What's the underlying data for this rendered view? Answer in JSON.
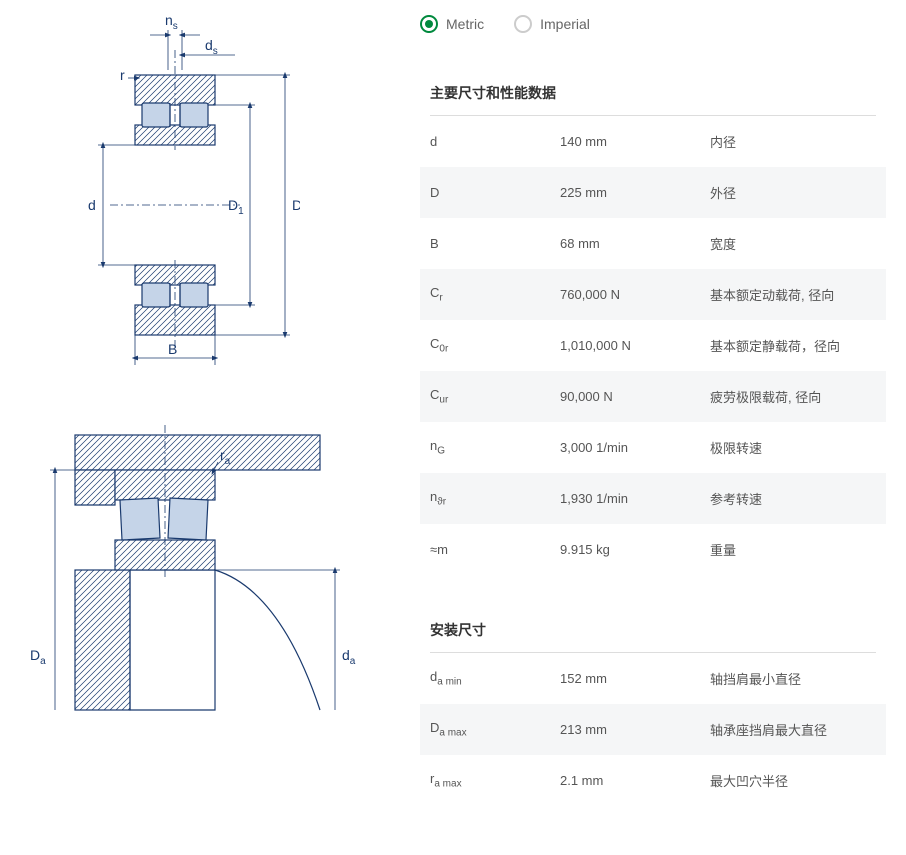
{
  "units": {
    "metric": "Metric",
    "imperial": "Imperial",
    "selected": "metric"
  },
  "sections": {
    "main": {
      "title": "主要尺寸和性能数据"
    },
    "mounting": {
      "title": "安装尺寸"
    }
  },
  "main_rows": [
    {
      "param": "d",
      "sub": "",
      "value": "140 mm",
      "desc": "内径",
      "alt": false
    },
    {
      "param": "D",
      "sub": "",
      "value": "225 mm",
      "desc": "外径",
      "alt": true
    },
    {
      "param": "B",
      "sub": "",
      "value": "68 mm",
      "desc": "宽度",
      "alt": false
    },
    {
      "param": "C",
      "sub": "r",
      "value": "760,000 N",
      "desc": "基本额定动载荷, 径向",
      "alt": true
    },
    {
      "param": "C",
      "sub": "0r",
      "value": "1,010,000 N",
      "desc": "基本额定静载荷，径向",
      "alt": false
    },
    {
      "param": "C",
      "sub": "ur",
      "value": "90,000 N",
      "desc": "疲劳极限载荷, 径向",
      "alt": true
    },
    {
      "param": "n",
      "sub": "G",
      "value": "3,000 1/min",
      "desc": "极限转速",
      "alt": false
    },
    {
      "param": "n",
      "sub": "ϑr",
      "value": "1,930 1/min",
      "desc": "参考转速",
      "alt": true
    },
    {
      "param": "≈m",
      "sub": "",
      "value": "9.915 kg",
      "desc": "重量",
      "alt": false
    }
  ],
  "mounting_rows": [
    {
      "param": "d",
      "sub": "a min",
      "value": "152 mm",
      "desc": "轴挡肩最小直径",
      "alt": false
    },
    {
      "param": "D",
      "sub": "a max",
      "value": "213 mm",
      "desc": "轴承座挡肩最大直径",
      "alt": true
    },
    {
      "param": "r",
      "sub": "a max",
      "value": "2.1 mm",
      "desc": "最大凹穴半径",
      "alt": false
    }
  ],
  "diagram_labels": {
    "ns": "n",
    "ns_sub": "s",
    "ds": "d",
    "ds_sub": "s",
    "r": "r",
    "d": "d",
    "D1": "D",
    "D1_sub": "1",
    "D": "D",
    "B": "B",
    "ra": "r",
    "ra_sub": "a",
    "Da": "D",
    "Da_sub": "a",
    "da": "d",
    "da_sub": "a"
  },
  "colors": {
    "accent": "#00893d",
    "diagram_stroke": "#1a3a6e",
    "diagram_fill": "#c5d4e8",
    "row_alt": "#f5f6f7",
    "text": "#555"
  }
}
